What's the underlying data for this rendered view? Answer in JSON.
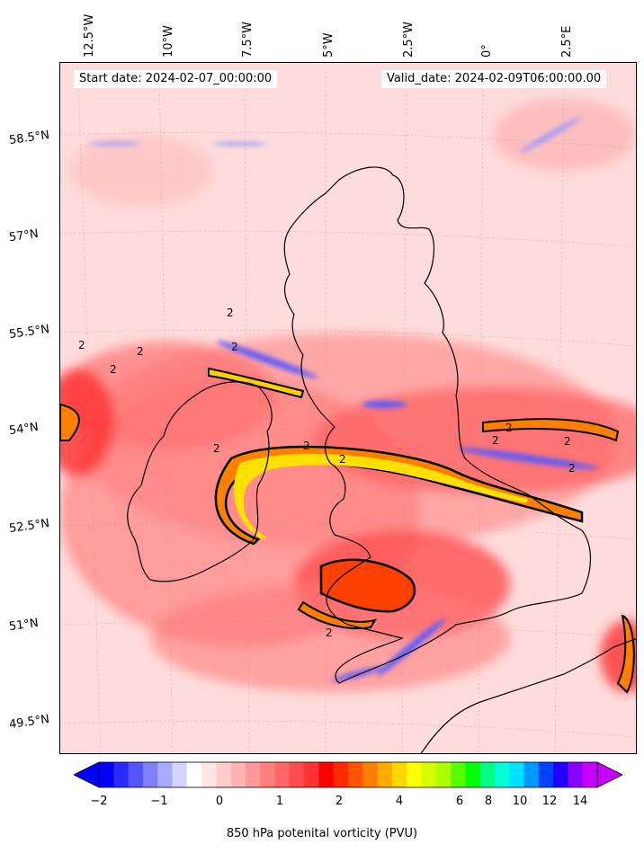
{
  "header": {
    "start_date": "Start date: 2024-02-07_00:00:00",
    "valid_date": "Valid_date: 2024-02-09T06:00:00.00"
  },
  "axes": {
    "lon_labels": [
      "12.5°W",
      "10°W",
      "7.5°W",
      "5°W",
      "2.5°W",
      "0°",
      "2.5°E"
    ],
    "lat_labels": [
      "58.5°N",
      "57°N",
      "55.5°N",
      "54°N",
      "52.5°N",
      "51°N",
      "49.5°N"
    ]
  },
  "contour_label": "2",
  "colorbar": {
    "label": "850 hPa potenital vorticity (PVU)",
    "ticks": [
      "−2",
      "−1",
      "0",
      "1",
      "2",
      "4",
      "6",
      "8",
      "10",
      "12",
      "14"
    ],
    "colors": [
      "#0000ff",
      "#2b2bff",
      "#5555ff",
      "#7f7fff",
      "#aaaaff",
      "#d4d4ff",
      "#ffffff",
      "#ffe6e6",
      "#ffcccc",
      "#ffb3b3",
      "#ff9999",
      "#ff7f7f",
      "#ff6666",
      "#ff4d4d",
      "#ff3333",
      "#ff0000",
      "#ff2a00",
      "#ff5500",
      "#ff8000",
      "#ffaa00",
      "#ffd500",
      "#ffff00",
      "#d4ff00",
      "#aaff00",
      "#55ff00",
      "#00ff00",
      "#00ff80",
      "#00ffd4",
      "#00e0ff",
      "#0099ff",
      "#0040ff",
      "#2200ff",
      "#8800ff",
      "#c800ff"
    ]
  }
}
